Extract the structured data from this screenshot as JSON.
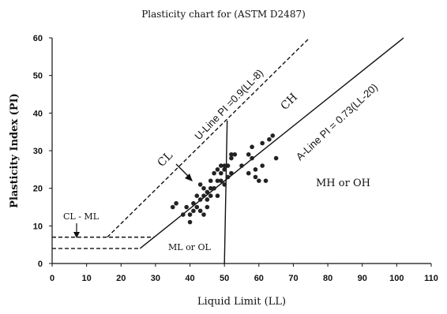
{
  "chart_data": {
    "type": "scatter",
    "title": "Plasticity chart for (ASTM D2487)",
    "xlabel": "Liquid Limit (LL)",
    "ylabel": "Plasticity Index (PI)",
    "xlim": [
      0,
      110
    ],
    "ylim": [
      0,
      60
    ],
    "xticks": [
      "0",
      "10",
      "20",
      "30",
      "40",
      "50",
      "60",
      "70",
      "80",
      "90",
      "100",
      "110"
    ],
    "yticks": [
      "0",
      "10",
      "20",
      "30",
      "40",
      "50",
      "60"
    ],
    "grid": false,
    "lines": {
      "u_line": {
        "label": "U-Line PI =0.9(LL-8)",
        "style": "dashed",
        "points": [
          [
            16,
            7
          ],
          [
            74.7,
            60
          ]
        ]
      },
      "a_line": {
        "label": "A-Line PI = 0.73(LL-20)",
        "style": "solid",
        "points": [
          [
            25.5,
            4
          ],
          [
            102,
            60
          ]
        ]
      },
      "cl_ml_upper": {
        "style": "dashed",
        "points": [
          [
            0,
            7
          ],
          [
            29.6,
            7
          ]
        ]
      },
      "cl_ml_lower": {
        "style": "dashed",
        "points": [
          [
            0,
            4
          ],
          [
            25.5,
            4
          ]
        ]
      },
      "ll50": {
        "style": "solid",
        "points": [
          [
            50,
            0
          ],
          [
            50.8,
            38
          ]
        ]
      }
    },
    "zone_labels": {
      "cl": "CL",
      "ch": "CH",
      "cl_ml": "CL - ML",
      "ml_ol": "ML or OL",
      "mh_oh": "MH or OH"
    },
    "points": [
      [
        35,
        15
      ],
      [
        36,
        16
      ],
      [
        38,
        13
      ],
      [
        39,
        15
      ],
      [
        40,
        13
      ],
      [
        40,
        11
      ],
      [
        41,
        14
      ],
      [
        41,
        16
      ],
      [
        42,
        15
      ],
      [
        42,
        18
      ],
      [
        43,
        17
      ],
      [
        43,
        21
      ],
      [
        43,
        14
      ],
      [
        44,
        13
      ],
      [
        44,
        18
      ],
      [
        44,
        20
      ],
      [
        45,
        19
      ],
      [
        45,
        17
      ],
      [
        45,
        15
      ],
      [
        46,
        20
      ],
      [
        46,
        22
      ],
      [
        46,
        18
      ],
      [
        47,
        20
      ],
      [
        47,
        24
      ],
      [
        48,
        18
      ],
      [
        48,
        22
      ],
      [
        48,
        25
      ],
      [
        49,
        22
      ],
      [
        49,
        24
      ],
      [
        49,
        26
      ],
      [
        50,
        26
      ],
      [
        50,
        25
      ],
      [
        50,
        21
      ],
      [
        51,
        26
      ],
      [
        51,
        23
      ],
      [
        52,
        28
      ],
      [
        52,
        29
      ],
      [
        52,
        24
      ],
      [
        53,
        29
      ],
      [
        55,
        26
      ],
      [
        57,
        29
      ],
      [
        57,
        24
      ],
      [
        58,
        28
      ],
      [
        58,
        31
      ],
      [
        59,
        25
      ],
      [
        59,
        23
      ],
      [
        60,
        22
      ],
      [
        61,
        32
      ],
      [
        61,
        26
      ],
      [
        62,
        22
      ],
      [
        63,
        33
      ],
      [
        64,
        34
      ],
      [
        65,
        28
      ]
    ]
  }
}
